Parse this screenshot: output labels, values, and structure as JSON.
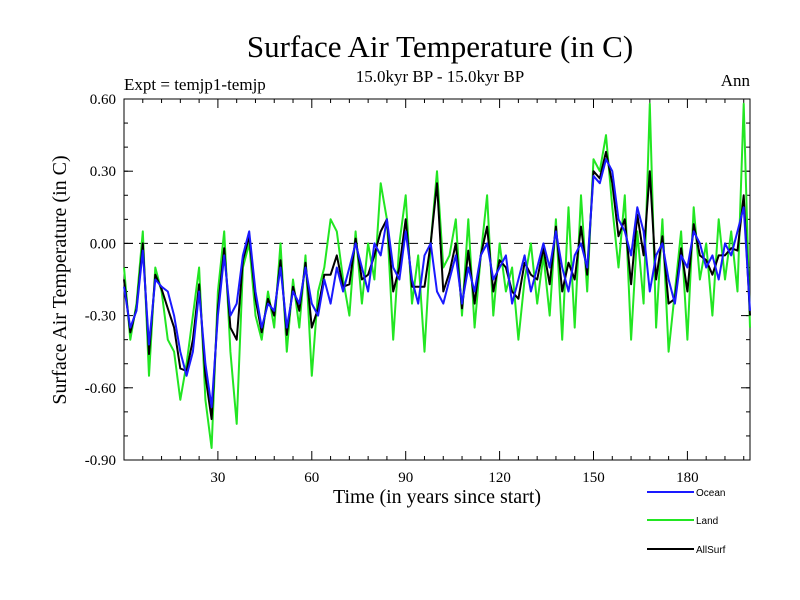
{
  "chart_data": {
    "type": "line",
    "title": "Surface Air Temperature (in C)",
    "subtitle_left": "Expt = temjp1-temjp",
    "subtitle_center": "15.0kyr BP - 15.0kyr BP",
    "subtitle_right": "Ann",
    "xlabel": "Time (in years since start)",
    "ylabel": "Surface Air Temperature (in C)",
    "xlim": [
      0,
      200
    ],
    "ylim": [
      -0.9,
      0.6
    ],
    "xticks": [
      30,
      60,
      90,
      120,
      150,
      180
    ],
    "xtick_labels": [
      "30",
      "60",
      "90",
      "120",
      "150",
      "180"
    ],
    "yticks": [
      -0.9,
      -0.6,
      -0.3,
      0.0,
      0.3,
      0.6
    ],
    "ytick_labels": [
      "-0.90",
      "-0.60",
      "-0.30",
      "0.00",
      "0.30",
      "0.60"
    ],
    "zero_line": "dashed",
    "legend_position": "bottom-right",
    "series": [
      {
        "name": "Ocean",
        "color": "#1a1aff",
        "points": [
          [
            0,
            -0.18
          ],
          [
            2,
            -0.35
          ],
          [
            4,
            -0.28
          ],
          [
            6,
            -0.03
          ],
          [
            8,
            -0.42
          ],
          [
            10,
            -0.15
          ],
          [
            12,
            -0.18
          ],
          [
            14,
            -0.2
          ],
          [
            16,
            -0.3
          ],
          [
            18,
            -0.45
          ],
          [
            20,
            -0.55
          ],
          [
            22,
            -0.45
          ],
          [
            24,
            -0.2
          ],
          [
            26,
            -0.5
          ],
          [
            28,
            -0.68
          ],
          [
            30,
            -0.3
          ],
          [
            32,
            -0.05
          ],
          [
            34,
            -0.3
          ],
          [
            36,
            -0.25
          ],
          [
            38,
            -0.05
          ],
          [
            40,
            0.05
          ],
          [
            42,
            -0.2
          ],
          [
            44,
            -0.35
          ],
          [
            46,
            -0.25
          ],
          [
            48,
            -0.28
          ],
          [
            50,
            -0.1
          ],
          [
            52,
            -0.35
          ],
          [
            54,
            -0.2
          ],
          [
            56,
            -0.25
          ],
          [
            58,
            -0.1
          ],
          [
            60,
            -0.25
          ],
          [
            62,
            -0.3
          ],
          [
            64,
            -0.15
          ],
          [
            66,
            -0.25
          ],
          [
            68,
            -0.1
          ],
          [
            70,
            -0.2
          ],
          [
            72,
            -0.1
          ],
          [
            74,
            0.0
          ],
          [
            76,
            -0.1
          ],
          [
            78,
            -0.2
          ],
          [
            80,
            0.0
          ],
          [
            82,
            -0.05
          ],
          [
            84,
            0.1
          ],
          [
            86,
            -0.1
          ],
          [
            88,
            -0.15
          ],
          [
            90,
            0.05
          ],
          [
            92,
            -0.15
          ],
          [
            94,
            -0.25
          ],
          [
            96,
            -0.05
          ],
          [
            98,
            0.0
          ],
          [
            100,
            -0.2
          ],
          [
            102,
            -0.25
          ],
          [
            104,
            -0.15
          ],
          [
            106,
            -0.05
          ],
          [
            108,
            -0.25
          ],
          [
            110,
            -0.1
          ],
          [
            112,
            -0.2
          ],
          [
            114,
            -0.05
          ],
          [
            116,
            0.0
          ],
          [
            118,
            -0.15
          ],
          [
            120,
            -0.1
          ],
          [
            122,
            -0.05
          ],
          [
            124,
            -0.25
          ],
          [
            126,
            -0.15
          ],
          [
            128,
            -0.05
          ],
          [
            130,
            -0.2
          ],
          [
            132,
            -0.1
          ],
          [
            134,
            0.0
          ],
          [
            136,
            -0.1
          ],
          [
            138,
            0.05
          ],
          [
            140,
            -0.1
          ],
          [
            142,
            -0.2
          ],
          [
            144,
            -0.05
          ],
          [
            146,
            0.0
          ],
          [
            148,
            -0.1
          ],
          [
            150,
            0.28
          ],
          [
            152,
            0.25
          ],
          [
            154,
            0.35
          ],
          [
            156,
            0.3
          ],
          [
            158,
            0.1
          ],
          [
            160,
            0.05
          ],
          [
            162,
            -0.05
          ],
          [
            164,
            0.15
          ],
          [
            166,
            0.05
          ],
          [
            168,
            -0.2
          ],
          [
            170,
            -0.05
          ],
          [
            172,
            0.0
          ],
          [
            174,
            -0.15
          ],
          [
            176,
            -0.25
          ],
          [
            178,
            -0.05
          ],
          [
            180,
            -0.1
          ],
          [
            182,
            0.05
          ],
          [
            184,
            0.0
          ],
          [
            186,
            -0.1
          ],
          [
            188,
            -0.05
          ],
          [
            190,
            -0.15
          ],
          [
            192,
            0.0
          ],
          [
            194,
            -0.05
          ],
          [
            196,
            0.05
          ],
          [
            198,
            0.15
          ],
          [
            200,
            -0.28
          ]
        ]
      },
      {
        "name": "Land",
        "color": "#22e622",
        "points": [
          [
            0,
            -0.1
          ],
          [
            2,
            -0.4
          ],
          [
            4,
            -0.25
          ],
          [
            6,
            0.05
          ],
          [
            8,
            -0.55
          ],
          [
            10,
            -0.1
          ],
          [
            12,
            -0.2
          ],
          [
            14,
            -0.4
          ],
          [
            16,
            -0.45
          ],
          [
            18,
            -0.65
          ],
          [
            20,
            -0.5
          ],
          [
            22,
            -0.3
          ],
          [
            24,
            -0.1
          ],
          [
            26,
            -0.65
          ],
          [
            28,
            -0.85
          ],
          [
            30,
            -0.2
          ],
          [
            32,
            0.05
          ],
          [
            34,
            -0.45
          ],
          [
            36,
            -0.75
          ],
          [
            38,
            -0.1
          ],
          [
            40,
            0.0
          ],
          [
            42,
            -0.3
          ],
          [
            44,
            -0.4
          ],
          [
            46,
            -0.2
          ],
          [
            48,
            -0.35
          ],
          [
            50,
            0.0
          ],
          [
            52,
            -0.45
          ],
          [
            54,
            -0.15
          ],
          [
            56,
            -0.35
          ],
          [
            58,
            -0.05
          ],
          [
            60,
            -0.55
          ],
          [
            62,
            -0.2
          ],
          [
            64,
            -0.1
          ],
          [
            66,
            0.1
          ],
          [
            68,
            0.05
          ],
          [
            70,
            -0.15
          ],
          [
            72,
            -0.3
          ],
          [
            74,
            0.05
          ],
          [
            76,
            -0.25
          ],
          [
            78,
            0.0
          ],
          [
            80,
            -0.15
          ],
          [
            82,
            0.25
          ],
          [
            84,
            0.1
          ],
          [
            86,
            -0.4
          ],
          [
            88,
            0.0
          ],
          [
            90,
            0.2
          ],
          [
            92,
            -0.25
          ],
          [
            94,
            -0.05
          ],
          [
            96,
            -0.45
          ],
          [
            98,
            0.0
          ],
          [
            100,
            0.3
          ],
          [
            102,
            -0.1
          ],
          [
            104,
            -0.05
          ],
          [
            106,
            0.1
          ],
          [
            108,
            -0.3
          ],
          [
            110,
            0.1
          ],
          [
            112,
            -0.35
          ],
          [
            114,
            -0.05
          ],
          [
            116,
            0.2
          ],
          [
            118,
            -0.3
          ],
          [
            120,
            0.0
          ],
          [
            122,
            -0.2
          ],
          [
            124,
            -0.1
          ],
          [
            126,
            -0.4
          ],
          [
            128,
            -0.15
          ],
          [
            130,
            0.0
          ],
          [
            132,
            -0.25
          ],
          [
            134,
            -0.05
          ],
          [
            136,
            -0.3
          ],
          [
            138,
            0.1
          ],
          [
            140,
            -0.4
          ],
          [
            142,
            0.15
          ],
          [
            144,
            -0.35
          ],
          [
            146,
            0.2
          ],
          [
            148,
            -0.2
          ],
          [
            150,
            0.35
          ],
          [
            152,
            0.3
          ],
          [
            154,
            0.45
          ],
          [
            156,
            0.15
          ],
          [
            158,
            -0.1
          ],
          [
            160,
            0.2
          ],
          [
            162,
            -0.4
          ],
          [
            164,
            0.05
          ],
          [
            166,
            -0.25
          ],
          [
            168,
            0.58
          ],
          [
            170,
            -0.35
          ],
          [
            172,
            0.1
          ],
          [
            174,
            -0.45
          ],
          [
            176,
            -0.2
          ],
          [
            178,
            0.05
          ],
          [
            180,
            -0.4
          ],
          [
            182,
            0.15
          ],
          [
            184,
            -0.15
          ],
          [
            186,
            0.0
          ],
          [
            188,
            -0.3
          ],
          [
            190,
            0.1
          ],
          [
            192,
            -0.15
          ],
          [
            194,
            0.05
          ],
          [
            196,
            -0.2
          ],
          [
            198,
            0.58
          ],
          [
            200,
            -0.35
          ]
        ]
      },
      {
        "name": "AllSurf",
        "color": "#000000",
        "points": [
          [
            0,
            -0.15
          ],
          [
            2,
            -0.37
          ],
          [
            4,
            -0.27
          ],
          [
            6,
            0.0
          ],
          [
            8,
            -0.46
          ],
          [
            10,
            -0.13
          ],
          [
            12,
            -0.19
          ],
          [
            14,
            -0.27
          ],
          [
            16,
            -0.35
          ],
          [
            18,
            -0.52
          ],
          [
            20,
            -0.53
          ],
          [
            22,
            -0.4
          ],
          [
            24,
            -0.17
          ],
          [
            26,
            -0.55
          ],
          [
            28,
            -0.73
          ],
          [
            30,
            -0.27
          ],
          [
            32,
            -0.02
          ],
          [
            34,
            -0.35
          ],
          [
            36,
            -0.4
          ],
          [
            38,
            -0.07
          ],
          [
            40,
            0.03
          ],
          [
            42,
            -0.23
          ],
          [
            44,
            -0.37
          ],
          [
            46,
            -0.23
          ],
          [
            48,
            -0.3
          ],
          [
            50,
            -0.07
          ],
          [
            52,
            -0.38
          ],
          [
            54,
            -0.18
          ],
          [
            56,
            -0.28
          ],
          [
            58,
            -0.08
          ],
          [
            60,
            -0.35
          ],
          [
            62,
            -0.27
          ],
          [
            64,
            -0.13
          ],
          [
            66,
            -0.13
          ],
          [
            68,
            -0.05
          ],
          [
            70,
            -0.18
          ],
          [
            72,
            -0.17
          ],
          [
            74,
            0.02
          ],
          [
            76,
            -0.15
          ],
          [
            78,
            -0.13
          ],
          [
            80,
            -0.05
          ],
          [
            82,
            0.05
          ],
          [
            84,
            0.1
          ],
          [
            86,
            -0.2
          ],
          [
            88,
            -0.1
          ],
          [
            90,
            0.1
          ],
          [
            92,
            -0.18
          ],
          [
            94,
            -0.18
          ],
          [
            96,
            -0.18
          ],
          [
            98,
            0.0
          ],
          [
            100,
            0.25
          ],
          [
            102,
            -0.2
          ],
          [
            104,
            -0.12
          ],
          [
            106,
            0.0
          ],
          [
            108,
            -0.27
          ],
          [
            110,
            -0.03
          ],
          [
            112,
            -0.25
          ],
          [
            114,
            -0.05
          ],
          [
            116,
            0.07
          ],
          [
            118,
            -0.2
          ],
          [
            120,
            -0.07
          ],
          [
            122,
            -0.1
          ],
          [
            124,
            -0.2
          ],
          [
            126,
            -0.23
          ],
          [
            128,
            -0.08
          ],
          [
            130,
            -0.13
          ],
          [
            132,
            -0.15
          ],
          [
            134,
            -0.02
          ],
          [
            136,
            -0.17
          ],
          [
            138,
            0.07
          ],
          [
            140,
            -0.2
          ],
          [
            142,
            -0.08
          ],
          [
            144,
            -0.15
          ],
          [
            146,
            0.07
          ],
          [
            148,
            -0.13
          ],
          [
            150,
            0.3
          ],
          [
            152,
            0.27
          ],
          [
            154,
            0.38
          ],
          [
            156,
            0.25
          ],
          [
            158,
            0.03
          ],
          [
            160,
            0.1
          ],
          [
            162,
            -0.17
          ],
          [
            164,
            0.12
          ],
          [
            166,
            -0.05
          ],
          [
            168,
            0.3
          ],
          [
            170,
            -0.15
          ],
          [
            172,
            0.03
          ],
          [
            174,
            -0.25
          ],
          [
            176,
            -0.23
          ],
          [
            178,
            -0.02
          ],
          [
            180,
            -0.2
          ],
          [
            182,
            0.08
          ],
          [
            184,
            -0.05
          ],
          [
            186,
            -0.07
          ],
          [
            188,
            -0.13
          ],
          [
            190,
            -0.05
          ],
          [
            192,
            -0.05
          ],
          [
            194,
            -0.02
          ],
          [
            196,
            -0.03
          ],
          [
            198,
            0.2
          ],
          [
            200,
            -0.3
          ]
        ]
      }
    ]
  }
}
